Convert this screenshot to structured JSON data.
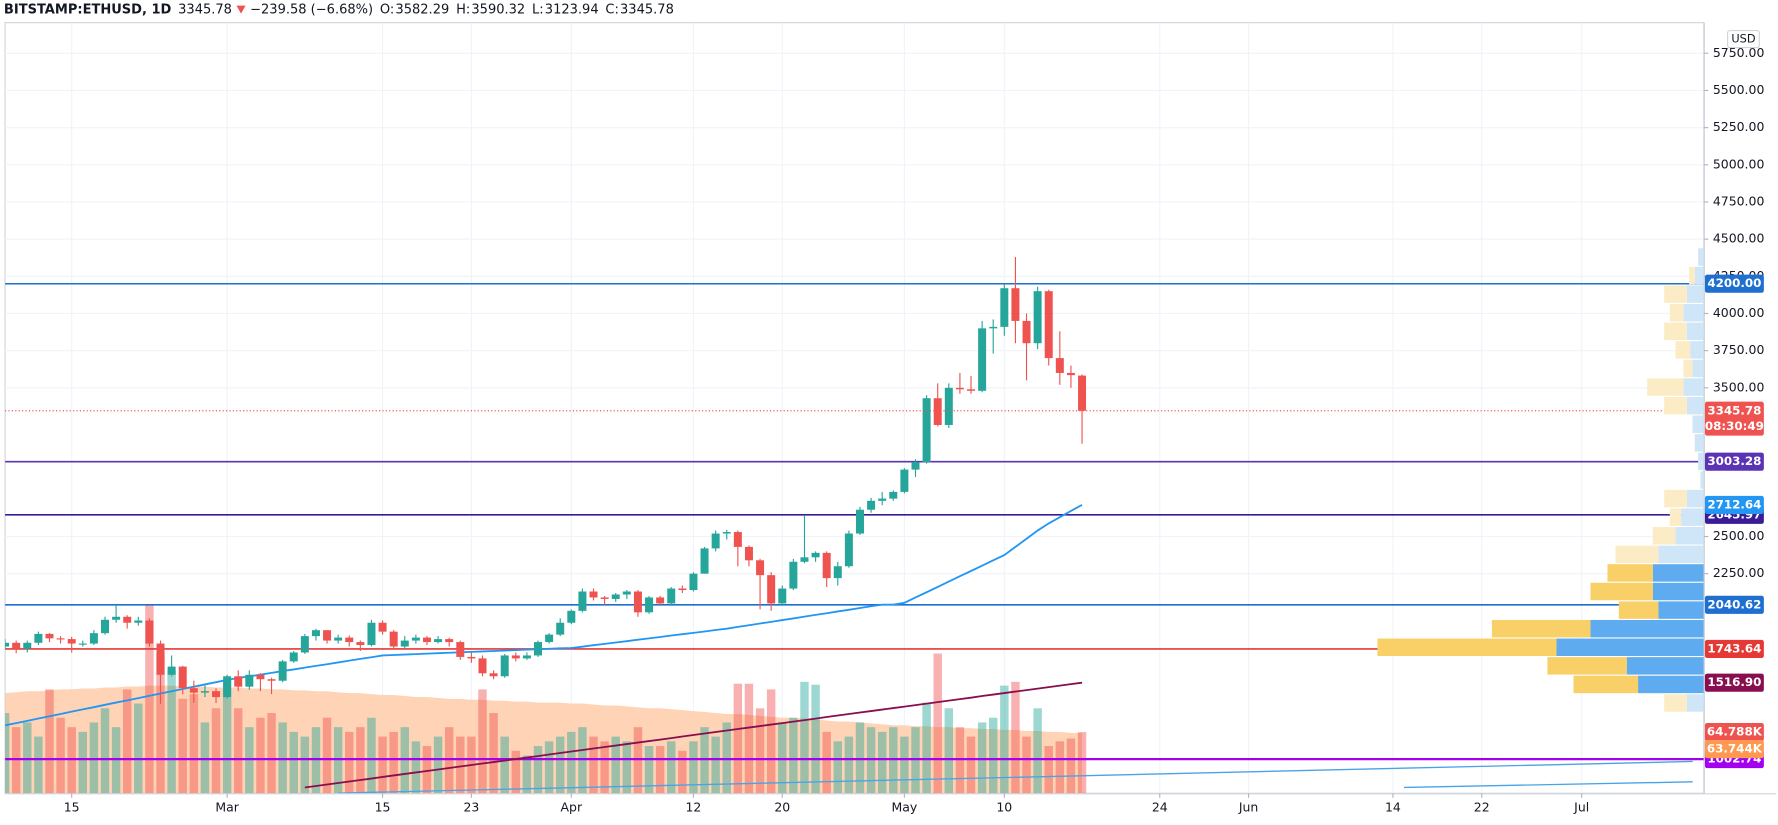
{
  "header": {
    "symbol": "BITSTAMP:ETHUSD, 1D",
    "change": "−239.58 (−6.68%)",
    "open": "O:",
    "high": "H:",
    "low": "L:",
    "close": "C:"
  },
  "chart_data": {
    "type": "candlestick",
    "currency": "USD",
    "up_color": "#26a69a",
    "down_color": "#ef5350",
    "x": [
      "Feb 9",
      "Feb 10",
      "Feb 11",
      "Feb 12",
      "Feb 13",
      "Feb 14",
      "Feb 15",
      "Feb 16",
      "Feb 17",
      "Feb 18",
      "Feb 19",
      "Feb 20",
      "Feb 21",
      "Feb 22",
      "Feb 23",
      "Feb 24",
      "Feb 25",
      "Feb 26",
      "Feb 27",
      "Feb 28",
      "Mar 1",
      "Mar 2",
      "Mar 3",
      "Mar 4",
      "Mar 5",
      "Mar 6",
      "Mar 7",
      "Mar 8",
      "Mar 9",
      "Mar 10",
      "Mar 11",
      "Mar 12",
      "Mar 13",
      "Mar 14",
      "Mar 15",
      "Mar 16",
      "Mar 17",
      "Mar 18",
      "Mar 19",
      "Mar 20",
      "Mar 21",
      "Mar 22",
      "Mar 23",
      "Mar 24",
      "Mar 25",
      "Mar 26",
      "Mar 27",
      "Mar 28",
      "Mar 29",
      "Mar 30",
      "Mar 31",
      "Apr 1",
      "Apr 2",
      "Apr 3",
      "Apr 4",
      "Apr 5",
      "Apr 6",
      "Apr 7",
      "Apr 8",
      "Apr 9",
      "Apr 10",
      "Apr 11",
      "Apr 12",
      "Apr 13",
      "Apr 14",
      "Apr 15",
      "Apr 16",
      "Apr 17",
      "Apr 18",
      "Apr 19",
      "Apr 20",
      "Apr 21",
      "Apr 22",
      "Apr 23",
      "Apr 24",
      "Apr 25",
      "Apr 26",
      "Apr 27",
      "Apr 28",
      "Apr 29",
      "Apr 30",
      "May 1",
      "May 2",
      "May 3",
      "May 4",
      "May 5",
      "May 6",
      "May 7",
      "May 8",
      "May 9",
      "May 10",
      "May 11",
      "May 12",
      "May 13",
      "May 14",
      "May 15",
      "May 16",
      "May 17"
    ],
    "open": [
      1760,
      1785,
      1745,
      1785,
      1845,
      1815,
      1810,
      1780,
      1780,
      1850,
      1940,
      1960,
      1920,
      1935,
      1780,
      1570,
      1625,
      1480,
      1450,
      1460,
      1420,
      1560,
      1490,
      1570,
      1540,
      1530,
      1660,
      1720,
      1830,
      1870,
      1800,
      1820,
      1790,
      1770,
      1920,
      1860,
      1760,
      1800,
      1820,
      1790,
      1810,
      1790,
      1690,
      1680,
      1580,
      1560,
      1700,
      1680,
      1700,
      1790,
      1840,
      1920,
      2000,
      2130,
      2090,
      2080,
      2110,
      2130,
      1990,
      2090,
      2050,
      2150,
      2140,
      2250,
      2420,
      2520,
      2530,
      2430,
      2340,
      2240,
      2050,
      2150,
      2330,
      2360,
      2390,
      2220,
      2300,
      2520,
      2680,
      2740,
      2755,
      2800,
      2950,
      3000,
      3430,
      3250,
      3500,
      3490,
      3480,
      3900,
      3910,
      4170,
      3950,
      3800,
      4150,
      3700,
      3600,
      3582.29
    ],
    "high": [
      1810,
      1800,
      1800,
      1860,
      1850,
      1830,
      1825,
      1800,
      1870,
      1960,
      2040,
      1970,
      1960,
      1950,
      1800,
      1700,
      1630,
      1530,
      1500,
      1480,
      1570,
      1600,
      1600,
      1580,
      1550,
      1670,
      1730,
      1845,
      1880,
      1870,
      1840,
      1835,
      1800,
      1940,
      1935,
      1870,
      1830,
      1840,
      1830,
      1830,
      1820,
      1800,
      1720,
      1700,
      1600,
      1710,
      1720,
      1720,
      1800,
      1850,
      1950,
      2010,
      2150,
      2150,
      2100,
      2120,
      2140,
      2140,
      2100,
      2100,
      2160,
      2170,
      2260,
      2430,
      2540,
      2545,
      2540,
      2440,
      2350,
      2260,
      2170,
      2350,
      2640,
      2400,
      2400,
      2330,
      2540,
      2700,
      2760,
      2800,
      2810,
      2960,
      3020,
      3450,
      3530,
      3530,
      3600,
      3580,
      3950,
      3960,
      4200,
      4380,
      4000,
      4180,
      4160,
      3880,
      3650,
      3590.32
    ],
    "low": [
      1740,
      1715,
      1720,
      1770,
      1790,
      1780,
      1720,
      1760,
      1770,
      1840,
      1920,
      1880,
      1900,
      1760,
      1375,
      1560,
      1440,
      1380,
      1420,
      1380,
      1410,
      1460,
      1470,
      1460,
      1440,
      1520,
      1650,
      1710,
      1800,
      1780,
      1780,
      1760,
      1730,
      1760,
      1840,
      1740,
      1750,
      1780,
      1770,
      1780,
      1760,
      1670,
      1650,
      1560,
      1540,
      1550,
      1660,
      1670,
      1690,
      1780,
      1830,
      1910,
      1990,
      2070,
      2040,
      2060,
      2080,
      1960,
      1980,
      2040,
      2040,
      2120,
      2130,
      2250,
      2400,
      2480,
      2300,
      2300,
      2010,
      2000,
      2040,
      2140,
      2320,
      2330,
      2160,
      2170,
      2290,
      2510,
      2660,
      2710,
      2740,
      2790,
      2900,
      2990,
      3240,
      3230,
      3460,
      3460,
      3470,
      3730,
      3850,
      3800,
      3550,
      3760,
      3650,
      3520,
      3500,
      3123.94
    ],
    "close": [
      1785,
      1745,
      1785,
      1845,
      1815,
      1810,
      1780,
      1780,
      1850,
      1940,
      1960,
      1920,
      1935,
      1780,
      1570,
      1625,
      1480,
      1450,
      1460,
      1420,
      1560,
      1490,
      1570,
      1540,
      1530,
      1660,
      1720,
      1830,
      1870,
      1800,
      1820,
      1790,
      1770,
      1920,
      1860,
      1760,
      1800,
      1820,
      1790,
      1810,
      1790,
      1690,
      1680,
      1580,
      1560,
      1700,
      1680,
      1700,
      1790,
      1840,
      1920,
      2000,
      2130,
      2090,
      2080,
      2110,
      2130,
      1990,
      2090,
      2050,
      2150,
      2140,
      2250,
      2420,
      2520,
      2530,
      2430,
      2340,
      2240,
      2050,
      2150,
      2330,
      2360,
      2390,
      2220,
      2300,
      2520,
      2680,
      2740,
      2755,
      2800,
      2950,
      3000,
      3430,
      3250,
      3500,
      3490,
      3480,
      3900,
      3910,
      4170,
      3950,
      3800,
      4150,
      3700,
      3600,
      3585.36,
      3345.78
    ],
    "volume": {
      "axis": "y2",
      "last_label": "64.788K",
      "values": [
        85000,
        70000,
        75000,
        60000,
        110000,
        80000,
        70000,
        65000,
        75000,
        90000,
        70000,
        110000,
        95000,
        200000,
        148000,
        130000,
        100000,
        105000,
        75000,
        90000,
        120000,
        90000,
        70000,
        80000,
        85000,
        75000,
        65000,
        60000,
        70000,
        80000,
        70000,
        65000,
        70000,
        80000,
        60000,
        65000,
        70000,
        55000,
        50000,
        60000,
        70000,
        60000,
        60000,
        110000,
        85000,
        60000,
        45000,
        40000,
        50000,
        55000,
        60000,
        65000,
        70000,
        60000,
        55000,
        60000,
        55000,
        70000,
        50000,
        50000,
        55000,
        45000,
        55000,
        70000,
        60000,
        75000,
        116000,
        116000,
        90000,
        110000,
        75000,
        80000,
        118000,
        115000,
        65000,
        55000,
        60000,
        75000,
        70000,
        65000,
        70000,
        60000,
        70000,
        96000,
        148000,
        90000,
        70000,
        60000,
        75000,
        80000,
        114000,
        118000,
        60000,
        90000,
        50000,
        55000,
        58000,
        64788
      ]
    },
    "volume_ma": {
      "axis": "y2",
      "color": "#ffcba8",
      "last_color": "#ff9850",
      "last_label": "63.744K",
      "values": [
        106000,
        107000,
        108000,
        108000,
        109000,
        110000,
        110000,
        111000,
        111000,
        112000,
        112000,
        113000,
        113000,
        114000,
        114000,
        114000,
        113000,
        113000,
        113000,
        112000,
        112000,
        112000,
        111000,
        111000,
        110000,
        110000,
        109000,
        109000,
        108000,
        108000,
        107000,
        106000,
        106000,
        105000,
        104000,
        104000,
        103000,
        102000,
        102000,
        101000,
        100000,
        100000,
        99000,
        99000,
        98000,
        98000,
        97000,
        97000,
        96000,
        96000,
        96000,
        95000,
        95000,
        94000,
        93000,
        93000,
        92000,
        91000,
        90000,
        90000,
        89000,
        88000,
        87000,
        86000,
        85000,
        84000,
        84000,
        83000,
        82000,
        81000,
        80000,
        80000,
        79000,
        78000,
        77000,
        76000,
        76000,
        75000,
        74000,
        73000,
        72000,
        72000,
        71000,
        71000,
        70000,
        70000,
        69000,
        69000,
        68000,
        68000,
        67000,
        67000,
        66000,
        66000,
        65000,
        65000,
        64000,
        63744
      ]
    },
    "ma_fast": {
      "color": "#2196f3",
      "label_color": "#2196f3",
      "values": [
        1230,
        1245,
        1260,
        1276,
        1291,
        1306,
        1322,
        1337,
        1352,
        1368,
        1383,
        1398,
        1413,
        1429,
        1444,
        1459,
        1474,
        1490,
        1505,
        1520,
        1536,
        1548,
        1559,
        1571,
        1583,
        1595,
        1606,
        1618,
        1630,
        1641,
        1653,
        1665,
        1677,
        1688,
        1700,
        1703,
        1706,
        1709,
        1712,
        1715,
        1718,
        1721,
        1724,
        1727,
        1730,
        1733,
        1736,
        1739,
        1742,
        1745,
        1748,
        1750,
        1759,
        1769,
        1778,
        1787,
        1796,
        1806,
        1815,
        1824,
        1834,
        1843,
        1852,
        1861,
        1871,
        1880,
        1892,
        1903,
        1915,
        1926,
        1938,
        1949,
        1961,
        1973,
        1984,
        1996,
        2007,
        2019,
        2031,
        2042,
        2042,
        2054,
        2090,
        2125,
        2161,
        2197,
        2233,
        2268,
        2304,
        2340,
        2375,
        2430,
        2485,
        2540,
        2588,
        2630,
        2672,
        2712.64
      ]
    },
    "ma_slow": {
      "color": "#880e4f",
      "last_label": "1516.90",
      "values": [
        null,
        null,
        null,
        null,
        null,
        null,
        null,
        null,
        null,
        null,
        null,
        null,
        null,
        null,
        null,
        null,
        null,
        null,
        null,
        null,
        null,
        null,
        null,
        null,
        null,
        null,
        null,
        812,
        822,
        832,
        842,
        852,
        862,
        872,
        883,
        893,
        903,
        913,
        923,
        933,
        943,
        953,
        963,
        973,
        983,
        993,
        1003,
        1013,
        1023,
        1034,
        1044,
        1054,
        1064,
        1074,
        1084,
        1094,
        1104,
        1114,
        1124,
        1134,
        1144,
        1155,
        1165,
        1175,
        1185,
        1195,
        1205,
        1215,
        1225,
        1235,
        1245,
        1255,
        1265,
        1275,
        1286,
        1296,
        1306,
        1316,
        1326,
        1336,
        1346,
        1356,
        1366,
        1376,
        1386,
        1396,
        1406,
        1416,
        1427,
        1437,
        1447,
        1457,
        1467,
        1477,
        1487,
        1497,
        1507,
        1516.9
      ]
    },
    "last_price": {
      "color": "#ef5350",
      "countdown": "08:30:49"
    },
    "levels": [
      {
        "value": 4200,
        "label": "4200.00",
        "color": "#1e6fd0"
      },
      {
        "value": 3003.28,
        "color": "#5b33b5"
      },
      {
        "value": 2645.97,
        "color": "#3a1d96"
      },
      {
        "value": 2040.62,
        "color": "#1e6fd0"
      },
      {
        "value": 1743.64,
        "color": "#e53935"
      },
      {
        "value": 1002.74,
        "color": "#a400f0"
      }
    ],
    "trend_lines": [
      {
        "from": {
          "x": "Mar 11",
          "y": 774
        },
        "to": {
          "x": "Jul 11",
          "y": 987
        },
        "color": "#4aa3e8"
      },
      {
        "from": {
          "x": "Jun 15",
          "y": 812
        },
        "to": {
          "x": "Jul 11",
          "y": 850
        },
        "color": "#4aa3e8"
      }
    ],
    "profile": {
      "value_area": [
        1505,
        2255
      ],
      "colors": {
        "up": "#5eabef",
        "down": "#f9cf68",
        "up_outside": "#cfe5f8",
        "down_outside": "#fcecc6"
      },
      "rows": [
        {
          "price": 1380,
          "up": 15,
          "down": 20
        },
        {
          "price": 1505,
          "up": 58,
          "down": 57
        },
        {
          "price": 1630,
          "up": 68,
          "down": 70
        },
        {
          "price": 1755,
          "up": 130,
          "down": 158
        },
        {
          "price": 1880,
          "up": 100,
          "down": 87
        },
        {
          "price": 2005,
          "up": 40,
          "down": 35
        },
        {
          "price": 2130,
          "up": 45,
          "down": 55
        },
        {
          "price": 2255,
          "up": 45,
          "down": 40
        },
        {
          "price": 2380,
          "up": 40,
          "down": 38
        },
        {
          "price": 2505,
          "up": 25,
          "down": 20
        },
        {
          "price": 2630,
          "up": 20,
          "down": 10
        },
        {
          "price": 2755,
          "up": 15,
          "down": 20
        },
        {
          "price": 2880,
          "up": 3,
          "down": 0
        },
        {
          "price": 3005,
          "up": 5,
          "down": 0
        },
        {
          "price": 3130,
          "up": 8,
          "down": 0
        },
        {
          "price": 3255,
          "up": 10,
          "down": 0
        },
        {
          "price": 3380,
          "up": 15,
          "down": 20
        },
        {
          "price": 3505,
          "up": 18,
          "down": 32
        },
        {
          "price": 3630,
          "up": 10,
          "down": 8
        },
        {
          "price": 3755,
          "up": 12,
          "down": 13
        },
        {
          "price": 3880,
          "up": 15,
          "down": 20
        },
        {
          "price": 4005,
          "up": 18,
          "down": 12
        },
        {
          "price": 4130,
          "up": 15,
          "down": 20
        },
        {
          "price": 4255,
          "up": 8,
          "down": 5
        },
        {
          "price": 4380,
          "up": 5,
          "down": 0
        }
      ]
    },
    "xlim": [
      "Feb 9",
      "Jul 12"
    ],
    "xticks": [
      {
        "value": "Feb 15",
        "label": "15"
      },
      {
        "value": "Mar 1",
        "label": "Mar"
      },
      {
        "value": "Mar 15",
        "label": "15"
      },
      {
        "value": "Mar 23",
        "label": "23"
      },
      {
        "value": "Apr 1",
        "label": "Apr"
      },
      {
        "value": "Apr 12",
        "label": "12"
      },
      {
        "value": "Apr 20",
        "label": "20"
      },
      {
        "value": "May 1",
        "label": "May"
      },
      {
        "value": "May 10",
        "label": "10"
      },
      {
        "value": "May 24",
        "label": "24"
      },
      {
        "value": "Jun 1",
        "label": "Jun"
      },
      {
        "value": "Jun 14",
        "label": "14"
      },
      {
        "value": "Jun 22",
        "label": "22"
      },
      {
        "value": "Jul 1",
        "label": "Jul"
      }
    ],
    "ylim": [
      773,
      5956
    ],
    "yticks": [
      {
        "value": 2250,
        "label": "2250.00"
      },
      {
        "value": 2500,
        "label": "2500.00"
      },
      {
        "value": 3500,
        "label": "3500.00"
      },
      {
        "value": 3750,
        "label": "3750.00"
      },
      {
        "value": 4000,
        "label": "4000.00"
      },
      {
        "value": 4250,
        "label": "4250.00"
      },
      {
        "value": 4500,
        "label": "4500.00"
      },
      {
        "value": 4750,
        "label": "4750.00"
      },
      {
        "value": 5000,
        "label": "5000.00"
      },
      {
        "value": 5250,
        "label": "5250.00"
      },
      {
        "value": 5500,
        "label": "5500.00"
      },
      {
        "value": 5750,
        "label": "5750.00"
      }
    ],
    "y2lim": [
      0,
      816000
    ],
    "grid": true
  }
}
